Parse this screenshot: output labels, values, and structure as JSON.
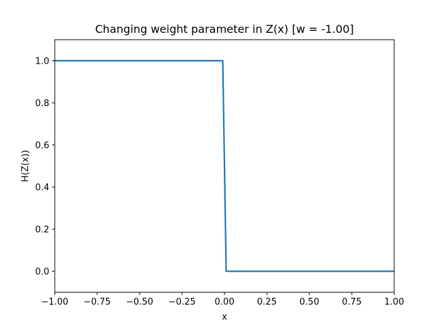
{
  "chart_data": {
    "type": "line",
    "title": "Changing weight parameter in Z(x) [w = -1.00]",
    "xlabel": "x",
    "ylabel": "H(Z(x))",
    "xlim": [
      -1.0,
      1.0
    ],
    "ylim": [
      -0.1,
      1.1
    ],
    "grid": false,
    "legend": "none",
    "line_color": "#1f77b4",
    "xticks": [
      {
        "value": -1.0,
        "label": "−1.00"
      },
      {
        "value": -0.75,
        "label": "−0.75"
      },
      {
        "value": -0.5,
        "label": "−0.50"
      },
      {
        "value": -0.25,
        "label": "−0.25"
      },
      {
        "value": 0.0,
        "label": "0.00"
      },
      {
        "value": 0.25,
        "label": "0.25"
      },
      {
        "value": 0.5,
        "label": "0.50"
      },
      {
        "value": 0.75,
        "label": "0.75"
      },
      {
        "value": 1.0,
        "label": "1.00"
      }
    ],
    "yticks": [
      {
        "value": 0.0,
        "label": "0.0"
      },
      {
        "value": 0.2,
        "label": "0.2"
      },
      {
        "value": 0.4,
        "label": "0.4"
      },
      {
        "value": 0.6,
        "label": "0.6"
      },
      {
        "value": 0.8,
        "label": "0.8"
      },
      {
        "value": 1.0,
        "label": "1.0"
      }
    ],
    "series": [
      {
        "x": [
          -1.0,
          -0.01,
          0.01,
          1.0
        ],
        "y": [
          1.0,
          1.0,
          0.0,
          0.0
        ]
      }
    ]
  }
}
